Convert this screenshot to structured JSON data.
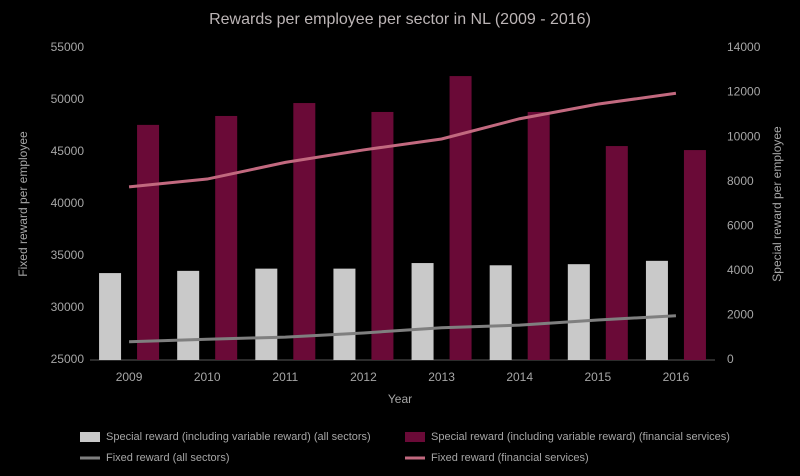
{
  "chart_data": {
    "type": "bar",
    "title": "Rewards per employee per sector in NL (2009 - 2016)",
    "x_label": "Year",
    "y_label": "Fixed reward per employee",
    "y2_label": "Special reward per employee",
    "categories": [
      "2009",
      "2010",
      "2011",
      "2012",
      "2013",
      "2014",
      "2015",
      "2016"
    ],
    "series": [
      {
        "name": "Special reward (including variable reward) (all sectors)",
        "type": "bar",
        "axis": "y2",
        "color": "#c9c9c9",
        "values": [
          3900,
          4000,
          4100,
          4100,
          4350,
          4250,
          4300,
          4450
        ]
      },
      {
        "name": "Special reward (including variable reward) (financial services)",
        "type": "bar",
        "axis": "y2",
        "color": "#6a0a37",
        "values": [
          10550,
          10950,
          11530,
          11130,
          12740,
          11130,
          9600,
          9420
        ]
      },
      {
        "name": "Fixed reward (all sectors)",
        "type": "line",
        "axis": "y",
        "color": "#7f7f7f",
        "values": [
          26750,
          27000,
          27200,
          27600,
          28100,
          28350,
          28850,
          29250
        ]
      },
      {
        "name": "Fixed reward (financial services)",
        "type": "line",
        "axis": "y",
        "color": "#c2697f",
        "values": [
          41650,
          42400,
          44000,
          45200,
          46250,
          48200,
          49600,
          50650
        ]
      }
    ],
    "ylim": [
      25000,
      55000
    ],
    "yticks": [
      25000,
      30000,
      35000,
      40000,
      45000,
      50000,
      55000
    ],
    "y2lim": [
      0,
      14000
    ],
    "y2ticks": [
      0,
      2000,
      4000,
      6000,
      8000,
      10000,
      12000,
      14000
    ],
    "grid": false
  }
}
